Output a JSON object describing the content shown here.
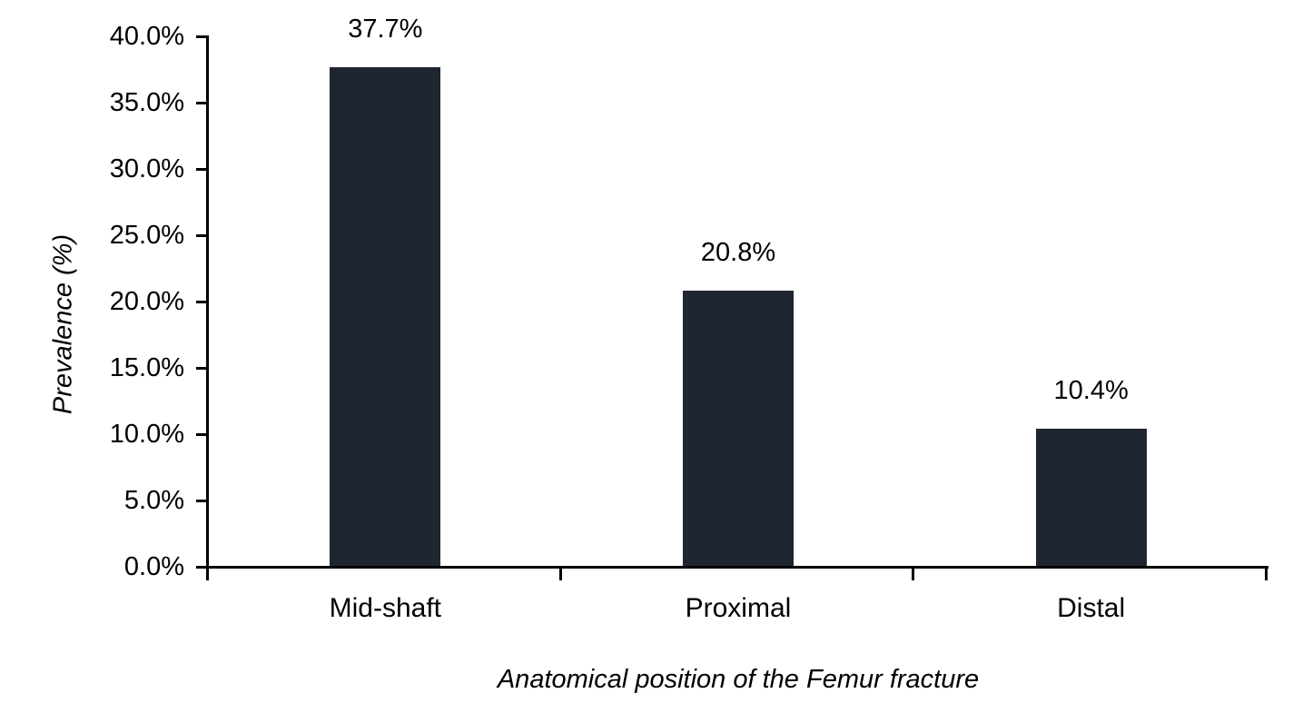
{
  "chart_data": {
    "type": "bar",
    "title": "",
    "categories": [
      "Mid-shaft",
      "Proximal",
      "Distal"
    ],
    "values": [
      37.7,
      20.8,
      10.4
    ],
    "value_labels": [
      "37.7%",
      "20.8%",
      "10.4%"
    ],
    "xlabel": "Anatomical position of the Femur fracture",
    "ylabel": "Prevalence (%)",
    "ylim": [
      0,
      40
    ],
    "ytick_step": 5,
    "ytick_labels": [
      "0.0%",
      "5.0%",
      "10.0%",
      "15.0%",
      "20.0%",
      "25.0%",
      "30.0%",
      "35.0%",
      "40.0%"
    ],
    "grid": false,
    "legend": "none",
    "bar_color": "#1f2630",
    "axis_color": "#000000",
    "text_color": "#000000",
    "background_color": "#ffffff"
  }
}
